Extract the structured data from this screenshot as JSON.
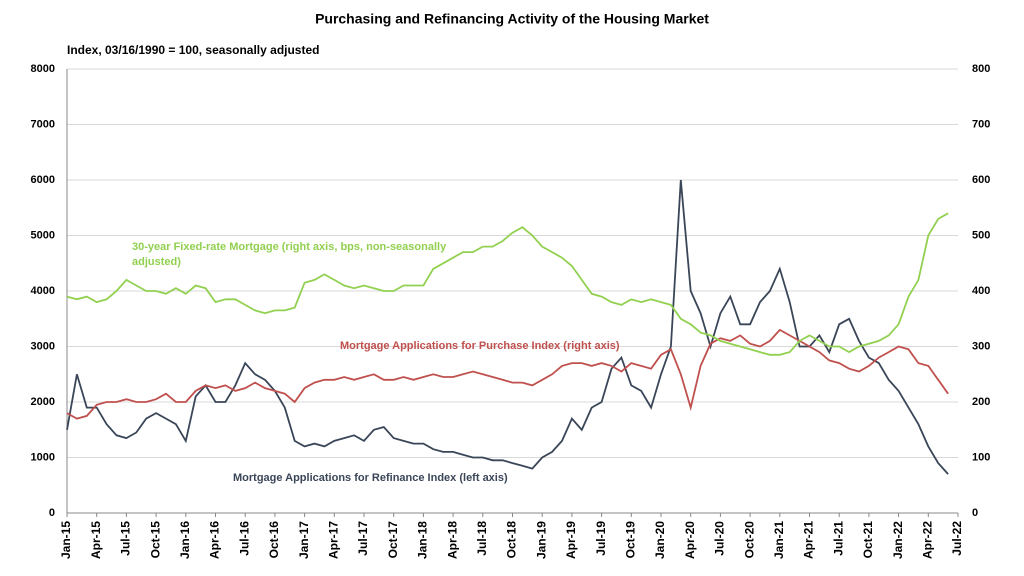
{
  "chart_data": {
    "type": "line",
    "title": "Purchasing and Refinancing Activity of the Housing Market",
    "subtitle": "Index, 03/16/1990 = 100, seasonally adjusted",
    "x": [
      "2015-01",
      "2015-02",
      "2015-03",
      "2015-04",
      "2015-05",
      "2015-06",
      "2015-07",
      "2015-08",
      "2015-09",
      "2015-10",
      "2015-11",
      "2015-12",
      "2016-01",
      "2016-02",
      "2016-03",
      "2016-04",
      "2016-05",
      "2016-06",
      "2016-07",
      "2016-08",
      "2016-09",
      "2016-10",
      "2016-11",
      "2016-12",
      "2017-01",
      "2017-02",
      "2017-03",
      "2017-04",
      "2017-05",
      "2017-06",
      "2017-07",
      "2017-08",
      "2017-09",
      "2017-10",
      "2017-11",
      "2017-12",
      "2018-01",
      "2018-02",
      "2018-03",
      "2018-04",
      "2018-05",
      "2018-06",
      "2018-07",
      "2018-08",
      "2018-09",
      "2018-10",
      "2018-11",
      "2018-12",
      "2019-01",
      "2019-02",
      "2019-03",
      "2019-04",
      "2019-05",
      "2019-06",
      "2019-07",
      "2019-08",
      "2019-09",
      "2019-10",
      "2019-11",
      "2019-12",
      "2020-01",
      "2020-02",
      "2020-03",
      "2020-04",
      "2020-05",
      "2020-06",
      "2020-07",
      "2020-08",
      "2020-09",
      "2020-10",
      "2020-11",
      "2020-12",
      "2021-01",
      "2021-02",
      "2021-03",
      "2021-04",
      "2021-05",
      "2021-06",
      "2021-07",
      "2021-08",
      "2021-09",
      "2021-10",
      "2021-11",
      "2021-12",
      "2022-01",
      "2022-02",
      "2022-03",
      "2022-04",
      "2022-05",
      "2022-06"
    ],
    "series": [
      {
        "name": "Mortgage Applications for Refinance Index (left axis)",
        "color": "#3a4658",
        "axis": "y",
        "values": [
          1500,
          2500,
          1900,
          1900,
          1600,
          1400,
          1350,
          1450,
          1700,
          1800,
          1700,
          1600,
          1300,
          2100,
          2300,
          2000,
          2000,
          2300,
          2700,
          2500,
          2400,
          2200,
          1900,
          1300,
          1200,
          1250,
          1200,
          1300,
          1350,
          1400,
          1300,
          1500,
          1550,
          1350,
          1300,
          1250,
          1250,
          1150,
          1100,
          1100,
          1050,
          1000,
          1000,
          950,
          950,
          900,
          850,
          800,
          1000,
          1100,
          1300,
          1700,
          1500,
          1900,
          2000,
          2600,
          2800,
          2300,
          2200,
          1900,
          2500,
          3000,
          6000,
          4000,
          3600,
          3000,
          3600,
          3900,
          3400,
          3400,
          3800,
          4000,
          4400,
          3800,
          3000,
          3000,
          3200,
          2900,
          3400,
          3500,
          3100,
          2800,
          2700,
          2400,
          2200,
          1900,
          1600,
          1200,
          900,
          700
        ]
      },
      {
        "name": "Mortgage Applications for Purchase Index (right axis)",
        "color": "#c0504d",
        "axis": "y2",
        "values": [
          180,
          170,
          175,
          195,
          200,
          200,
          205,
          200,
          200,
          205,
          215,
          200,
          200,
          220,
          230,
          225,
          230,
          220,
          225,
          235,
          225,
          220,
          215,
          200,
          225,
          235,
          240,
          240,
          245,
          240,
          245,
          250,
          240,
          240,
          245,
          240,
          245,
          250,
          245,
          245,
          250,
          255,
          250,
          245,
          240,
          235,
          235,
          230,
          240,
          250,
          265,
          270,
          270,
          265,
          270,
          265,
          255,
          270,
          265,
          260,
          285,
          295,
          250,
          190,
          265,
          305,
          315,
          310,
          320,
          305,
          300,
          310,
          330,
          320,
          310,
          300,
          290,
          275,
          270,
          260,
          255,
          265,
          280,
          290,
          300,
          295,
          270,
          265,
          240,
          215
        ]
      },
      {
        "name": "30-year Fixed-rate Mortgage (right axis, bps, non-seasonally adjusted)",
        "color": "#92d050",
        "axis": "y2",
        "values": [
          390,
          385,
          390,
          380,
          385,
          400,
          420,
          410,
          400,
          400,
          395,
          405,
          395,
          410,
          405,
          380,
          385,
          385,
          375,
          365,
          360,
          365,
          365,
          370,
          415,
          420,
          430,
          420,
          410,
          405,
          410,
          405,
          400,
          400,
          410,
          410,
          410,
          440,
          450,
          460,
          470,
          470,
          480,
          480,
          490,
          505,
          515,
          500,
          480,
          470,
          460,
          445,
          420,
          395,
          390,
          380,
          375,
          385,
          380,
          385,
          380,
          375,
          350,
          340,
          325,
          320,
          310,
          305,
          300,
          295,
          290,
          285,
          285,
          290,
          310,
          320,
          310,
          300,
          300,
          290,
          300,
          305,
          310,
          320,
          340,
          390,
          420,
          500,
          530,
          540
        ]
      }
    ],
    "xlim": [
      "2015-01",
      "2022-07"
    ],
    "xticks": [
      {
        "value": "2015-01",
        "label": "Jan-15"
      },
      {
        "value": "2015-04",
        "label": "Apr-15"
      },
      {
        "value": "2015-07",
        "label": "Jul-15"
      },
      {
        "value": "2015-10",
        "label": "Oct-15"
      },
      {
        "value": "2016-01",
        "label": "Jan-16"
      },
      {
        "value": "2016-04",
        "label": "Apr-16"
      },
      {
        "value": "2016-07",
        "label": "Jul-16"
      },
      {
        "value": "2016-10",
        "label": "Oct-16"
      },
      {
        "value": "2017-01",
        "label": "Jan-17"
      },
      {
        "value": "2017-04",
        "label": "Apr-17"
      },
      {
        "value": "2017-07",
        "label": "Jul-17"
      },
      {
        "value": "2017-10",
        "label": "Oct-17"
      },
      {
        "value": "2018-01",
        "label": "Jan-18"
      },
      {
        "value": "2018-04",
        "label": "Apr-18"
      },
      {
        "value": "2018-07",
        "label": "Jul-18"
      },
      {
        "value": "2018-10",
        "label": "Oct-18"
      },
      {
        "value": "2019-01",
        "label": "Jan-19"
      },
      {
        "value": "2019-04",
        "label": "Apr-19"
      },
      {
        "value": "2019-07",
        "label": "Jul-19"
      },
      {
        "value": "2019-10",
        "label": "Oct-19"
      },
      {
        "value": "2020-01",
        "label": "Jan-20"
      },
      {
        "value": "2020-04",
        "label": "Apr-20"
      },
      {
        "value": "2020-07",
        "label": "Jul-20"
      },
      {
        "value": "2020-10",
        "label": "Oct-20"
      },
      {
        "value": "2021-01",
        "label": "Jan-21"
      },
      {
        "value": "2021-04",
        "label": "Apr-21"
      },
      {
        "value": "2021-07",
        "label": "Jul-21"
      },
      {
        "value": "2021-10",
        "label": "Oct-21"
      },
      {
        "value": "2022-01",
        "label": "Jan-22"
      },
      {
        "value": "2022-04",
        "label": "Apr-22"
      },
      {
        "value": "2022-07",
        "label": "Jul-22"
      }
    ],
    "ylim": [
      0,
      8000
    ],
    "yticks": [
      0,
      1000,
      2000,
      3000,
      4000,
      5000,
      6000,
      7000,
      8000
    ],
    "y2lim": [
      0,
      800
    ],
    "y2ticks": [
      0,
      100,
      200,
      300,
      400,
      500,
      600,
      700,
      800
    ],
    "grid": true
  }
}
